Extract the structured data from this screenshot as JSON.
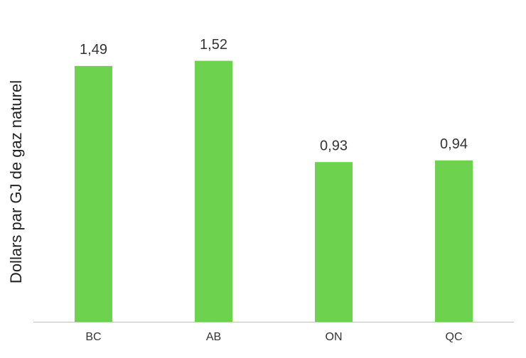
{
  "chart_data": {
    "type": "bar",
    "y_label": "Dollars par GJ de gaz naturel",
    "categories": [
      "BC",
      "AB",
      "ON",
      "QC"
    ],
    "values": [
      1.49,
      1.52,
      0.93,
      0.94
    ],
    "value_labels": [
      "1,49",
      "1,52",
      "0,93",
      "0,94"
    ],
    "color": "#6dd34f",
    "ylim": [
      0,
      1.75
    ]
  }
}
